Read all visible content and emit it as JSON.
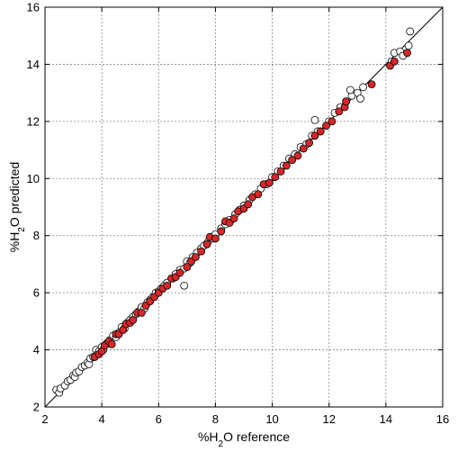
{
  "chart_data": {
    "type": "scatter",
    "title": "",
    "xlabel": "%H2O reference",
    "ylabel": "%H2O predicted",
    "xlabel_parts": {
      "pre": "%H",
      "sub": "2",
      "post": "O reference"
    },
    "ylabel_parts": {
      "pre": "%H",
      "sub": "2",
      "post": "O predicted"
    },
    "xlim": [
      2,
      16
    ],
    "ylim": [
      2,
      16
    ],
    "x_ticks": [
      2,
      4,
      6,
      8,
      10,
      12,
      14,
      16
    ],
    "y_ticks": [
      2,
      4,
      6,
      8,
      10,
      12,
      14,
      16
    ],
    "grid": true,
    "grid_style": "dotted",
    "reference_line": {
      "from": [
        2,
        2
      ],
      "to": [
        16,
        16
      ]
    },
    "colors": {
      "filled": "#d62728",
      "open_fill": "#ffffff",
      "edge": "#000000",
      "line": "#000000"
    },
    "series": [
      {
        "marker": "open",
        "points": [
          [
            2.4,
            2.6
          ],
          [
            2.5,
            2.5
          ],
          [
            2.55,
            2.65
          ],
          [
            2.7,
            2.75
          ],
          [
            2.8,
            2.9
          ],
          [
            2.9,
            2.95
          ],
          [
            3.0,
            3.1
          ],
          [
            3.05,
            3.05
          ],
          [
            3.1,
            3.2
          ],
          [
            3.2,
            3.25
          ],
          [
            3.3,
            3.4
          ],
          [
            3.4,
            3.45
          ],
          [
            3.5,
            3.55
          ],
          [
            3.55,
            3.5
          ],
          [
            3.6,
            3.7
          ],
          [
            3.7,
            3.75
          ],
          [
            3.8,
            4.0
          ],
          [
            3.85,
            3.85
          ],
          [
            3.9,
            3.95
          ],
          [
            4.0,
            4.1
          ],
          [
            4.05,
            4.0
          ],
          [
            4.15,
            4.2
          ],
          [
            4.2,
            4.25
          ],
          [
            4.3,
            4.35
          ],
          [
            4.4,
            4.5
          ],
          [
            4.5,
            4.45
          ],
          [
            4.6,
            4.6
          ],
          [
            4.7,
            4.8
          ],
          [
            4.8,
            4.75
          ],
          [
            4.9,
            4.95
          ],
          [
            5.0,
            5.05
          ],
          [
            5.1,
            5.15
          ],
          [
            5.2,
            5.25
          ],
          [
            5.3,
            5.35
          ],
          [
            5.4,
            5.5
          ],
          [
            5.5,
            5.45
          ],
          [
            5.6,
            5.65
          ],
          [
            5.7,
            5.75
          ],
          [
            5.8,
            5.85
          ],
          [
            5.9,
            6.0
          ],
          [
            6.0,
            6.05
          ],
          [
            6.1,
            6.15
          ],
          [
            6.2,
            6.25
          ],
          [
            6.3,
            6.35
          ],
          [
            6.5,
            6.5
          ],
          [
            6.6,
            6.65
          ],
          [
            6.75,
            6.8
          ],
          [
            6.9,
            6.85
          ],
          [
            6.9,
            6.25
          ],
          [
            7.0,
            7.1
          ],
          [
            7.1,
            7.05
          ],
          [
            7.2,
            7.25
          ],
          [
            7.35,
            7.4
          ],
          [
            7.5,
            7.55
          ],
          [
            7.6,
            7.65
          ],
          [
            7.75,
            7.8
          ],
          [
            7.9,
            7.9
          ],
          [
            8.0,
            8.05
          ],
          [
            8.2,
            8.25
          ],
          [
            8.35,
            8.4
          ],
          [
            8.5,
            8.55
          ],
          [
            8.7,
            8.75
          ],
          [
            8.85,
            8.9
          ],
          [
            9.0,
            9.05
          ],
          [
            9.2,
            9.25
          ],
          [
            9.4,
            9.45
          ],
          [
            9.6,
            9.65
          ],
          [
            9.8,
            9.8
          ],
          [
            10.0,
            10.05
          ],
          [
            10.2,
            10.25
          ],
          [
            10.4,
            10.45
          ],
          [
            10.6,
            10.7
          ],
          [
            10.8,
            10.85
          ],
          [
            11.0,
            11.1
          ],
          [
            11.2,
            11.2
          ],
          [
            11.4,
            11.5
          ],
          [
            11.6,
            11.65
          ],
          [
            11.5,
            12.05
          ],
          [
            12.0,
            12.0
          ],
          [
            12.2,
            12.3
          ],
          [
            12.4,
            12.5
          ],
          [
            12.6,
            12.7
          ],
          [
            12.8,
            12.9
          ],
          [
            12.75,
            13.1
          ],
          [
            13.0,
            13.0
          ],
          [
            13.1,
            12.8
          ],
          [
            13.2,
            13.2
          ],
          [
            14.2,
            14.1
          ],
          [
            14.3,
            14.4
          ],
          [
            14.5,
            14.45
          ],
          [
            14.6,
            14.3
          ],
          [
            14.8,
            14.65
          ],
          [
            14.85,
            15.15
          ]
        ]
      },
      {
        "marker": "filled",
        "points": [
          [
            3.75,
            3.75
          ],
          [
            3.9,
            3.85
          ],
          [
            4.0,
            3.95
          ],
          [
            4.1,
            4.15
          ],
          [
            4.25,
            4.3
          ],
          [
            4.35,
            4.2
          ],
          [
            4.5,
            4.55
          ],
          [
            4.6,
            4.55
          ],
          [
            4.75,
            4.7
          ],
          [
            4.85,
            4.9
          ],
          [
            5.0,
            4.95
          ],
          [
            5.1,
            5.05
          ],
          [
            5.25,
            5.3
          ],
          [
            5.4,
            5.3
          ],
          [
            5.55,
            5.55
          ],
          [
            5.7,
            5.7
          ],
          [
            5.85,
            5.85
          ],
          [
            6.0,
            6.0
          ],
          [
            6.15,
            6.15
          ],
          [
            6.3,
            6.25
          ],
          [
            6.45,
            6.5
          ],
          [
            6.6,
            6.55
          ],
          [
            6.75,
            6.7
          ],
          [
            7.0,
            6.9
          ],
          [
            7.15,
            7.1
          ],
          [
            7.3,
            7.25
          ],
          [
            7.5,
            7.45
          ],
          [
            7.7,
            7.7
          ],
          [
            7.8,
            7.95
          ],
          [
            8.0,
            7.9
          ],
          [
            8.2,
            8.15
          ],
          [
            8.35,
            8.5
          ],
          [
            8.5,
            8.45
          ],
          [
            8.65,
            8.6
          ],
          [
            8.8,
            8.85
          ],
          [
            9.0,
            8.95
          ],
          [
            9.15,
            9.1
          ],
          [
            9.3,
            9.35
          ],
          [
            9.5,
            9.45
          ],
          [
            9.7,
            9.8
          ],
          [
            9.9,
            9.85
          ],
          [
            10.1,
            10.05
          ],
          [
            10.3,
            10.25
          ],
          [
            10.5,
            10.45
          ],
          [
            10.7,
            10.65
          ],
          [
            10.9,
            10.8
          ],
          [
            11.1,
            11.05
          ],
          [
            11.3,
            11.25
          ],
          [
            11.5,
            11.5
          ],
          [
            11.7,
            11.65
          ],
          [
            11.9,
            11.85
          ],
          [
            12.1,
            12.0
          ],
          [
            12.35,
            12.35
          ],
          [
            12.55,
            12.5
          ],
          [
            12.6,
            12.7
          ],
          [
            13.5,
            13.3
          ],
          [
            14.15,
            13.95
          ],
          [
            14.3,
            14.1
          ],
          [
            14.75,
            14.4
          ]
        ]
      }
    ]
  }
}
